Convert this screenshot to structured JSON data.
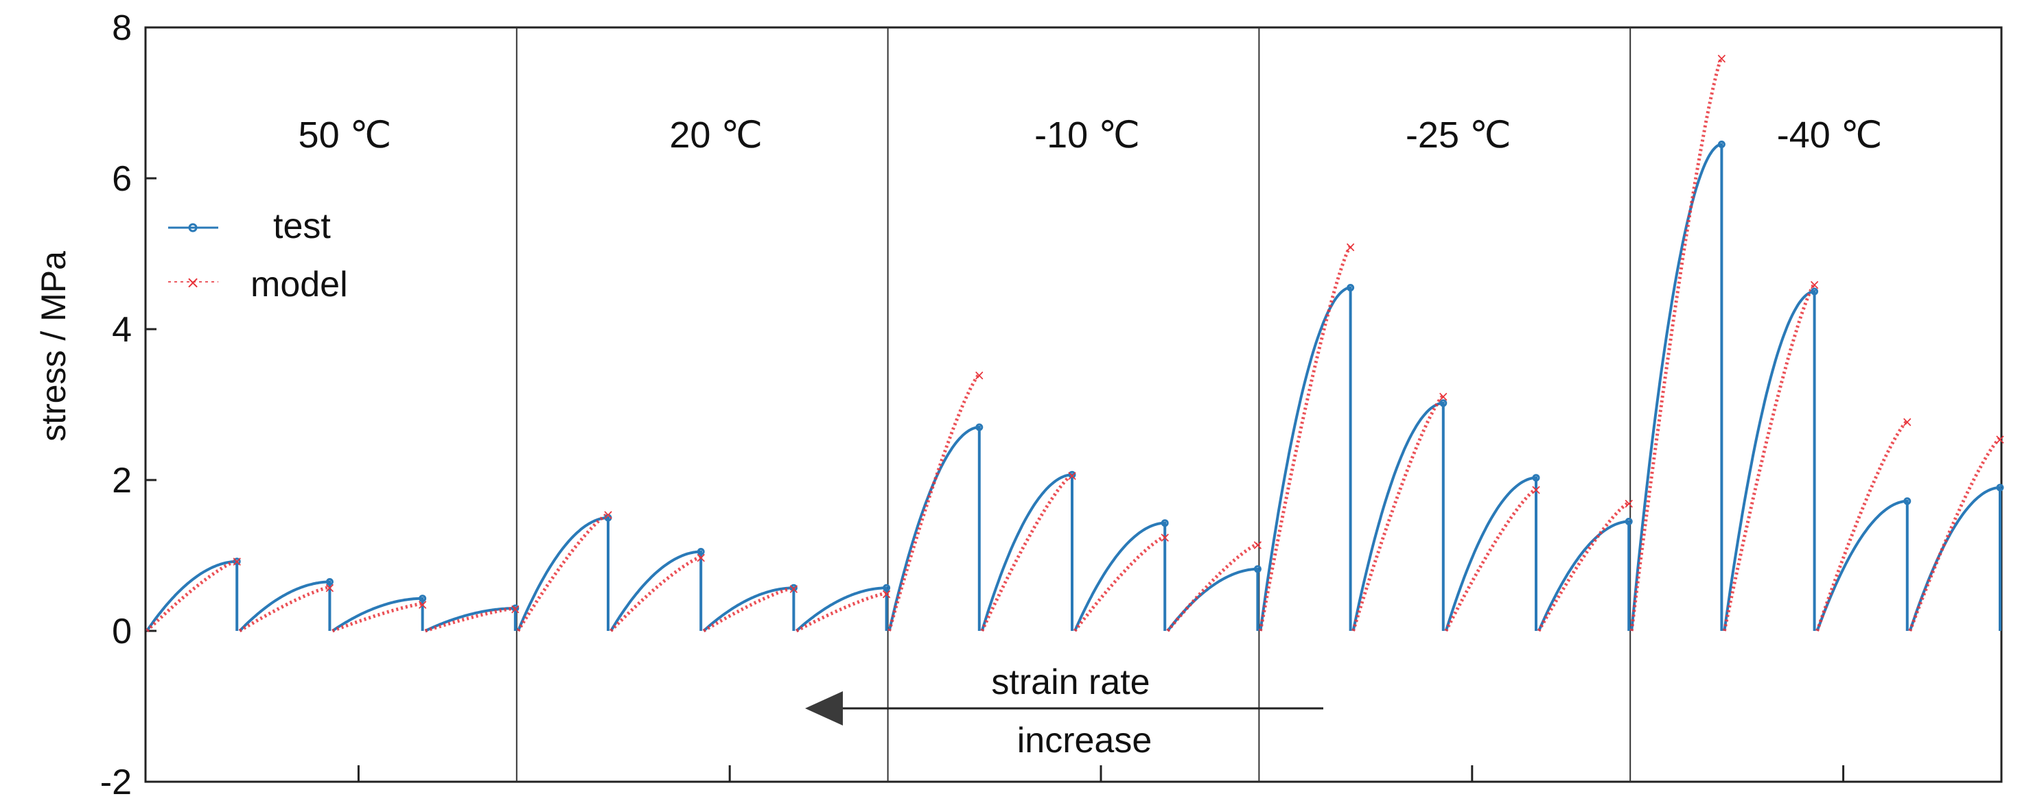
{
  "chart_data": {
    "type": "line",
    "ylabel": "stress / MPa",
    "xlabel": "",
    "ylim": [
      -2,
      8
    ],
    "yticks": [
      "-2",
      "0",
      "2",
      "4",
      "6",
      "8"
    ],
    "legend": {
      "placement": "top-left",
      "items": [
        "test",
        "model"
      ]
    },
    "colors": {
      "test": "#2a7ab8",
      "model": "#e8333a",
      "frame": "#222222",
      "arrow": "#222222"
    },
    "panels": [
      {
        "title": "50 ℃",
        "segments": [
          {
            "test_peak": 0.92,
            "model_peak": 0.93
          },
          {
            "test_peak": 0.65,
            "model_peak": 0.58
          },
          {
            "test_peak": 0.43,
            "model_peak": 0.36
          },
          {
            "test_peak": 0.3,
            "model_peak": 0.3
          }
        ]
      },
      {
        "title": "20 ℃",
        "segments": [
          {
            "test_peak": 1.5,
            "model_peak": 1.55
          },
          {
            "test_peak": 1.05,
            "model_peak": 0.98
          },
          {
            "test_peak": 0.57,
            "model_peak": 0.57
          },
          {
            "test_peak": 0.57,
            "model_peak": 0.5
          }
        ]
      },
      {
        "title": "-10 ℃",
        "segments": [
          {
            "test_peak": 2.7,
            "model_peak": 3.4
          },
          {
            "test_peak": 2.07,
            "model_peak": 2.07
          },
          {
            "test_peak": 1.43,
            "model_peak": 1.25
          },
          {
            "test_peak": 0.82,
            "model_peak": 1.15
          }
        ]
      },
      {
        "title": "-25 ℃",
        "segments": [
          {
            "test_peak": 4.55,
            "model_peak": 5.1
          },
          {
            "test_peak": 3.02,
            "model_peak": 3.12
          },
          {
            "test_peak": 2.03,
            "model_peak": 1.88
          },
          {
            "test_peak": 1.45,
            "model_peak": 1.7
          }
        ]
      },
      {
        "title": "-40 ℃",
        "segments": [
          {
            "test_peak": 6.45,
            "model_peak": 7.6
          },
          {
            "test_peak": 4.5,
            "model_peak": 4.6
          },
          {
            "test_peak": 1.72,
            "model_peak": 2.78
          },
          {
            "test_peak": 1.9,
            "model_peak": 2.55
          }
        ]
      }
    ],
    "annotation": {
      "line1": "strain rate",
      "line2": "increase",
      "arrow_direction": "left"
    }
  }
}
